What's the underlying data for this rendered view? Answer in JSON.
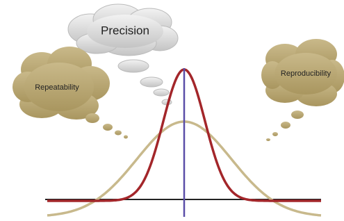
{
  "labels": {
    "precision": "Precision",
    "repeatability": "Repeatability",
    "reproducibility": "Reproducibility"
  }
}
